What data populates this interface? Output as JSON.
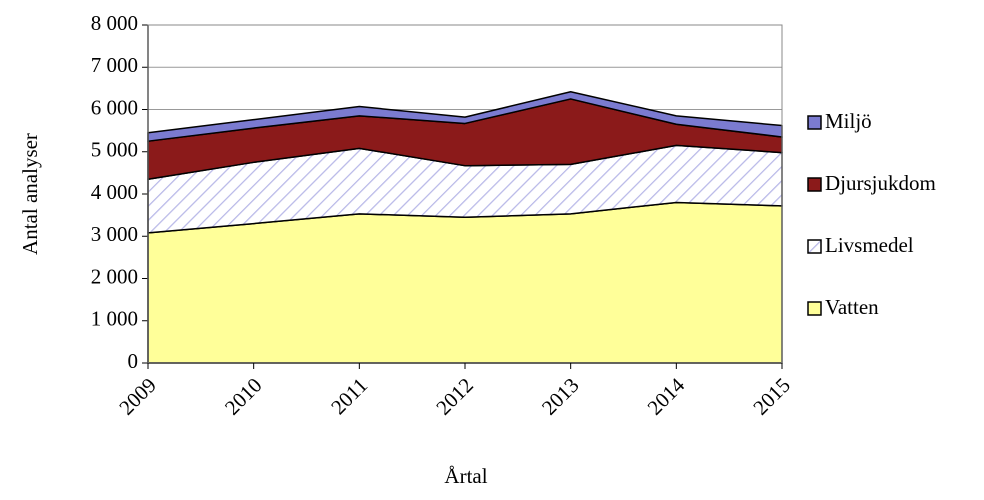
{
  "chart_data": {
    "type": "stacked_area",
    "categories": [
      "2009",
      "2010",
      "2011",
      "2012",
      "2013",
      "2014",
      "2015"
    ],
    "series": [
      {
        "name": "Vatten",
        "color": "#ffff99",
        "values": [
          3080,
          3300,
          3530,
          3450,
          3530,
          3800,
          3720
        ]
      },
      {
        "name": "Livsmedel",
        "color": "#b8b8e8",
        "pattern": "hatch",
        "values": [
          1270,
          1450,
          1550,
          1220,
          1170,
          1350,
          1260
        ]
      },
      {
        "name": "Djursjukdom",
        "color": "#8b1a1a",
        "values": [
          900,
          810,
          770,
          1000,
          1550,
          500,
          370
        ]
      },
      {
        "name": "Miljö",
        "color": "#7b7bd0",
        "values": [
          200,
          200,
          220,
          150,
          170,
          200,
          270
        ]
      }
    ],
    "ylim": [
      0,
      8000
    ],
    "yticks": [
      0,
      {
        "value": 1000,
        "label": "1 000"
      },
      {
        "value": 2000,
        "label": "2 000"
      },
      {
        "value": 3000,
        "label": "3 000"
      },
      {
        "value": 4000,
        "label": "4 000"
      },
      {
        "value": 5000,
        "label": "5 000"
      },
      {
        "value": 6000,
        "label": "6 000"
      },
      {
        "value": 7000,
        "label": "7 000"
      },
      {
        "value": 8000,
        "label": "8 000"
      }
    ],
    "y_label": "Antal analyser",
    "x_label": "Årtal",
    "grid": true,
    "legend": "right"
  }
}
